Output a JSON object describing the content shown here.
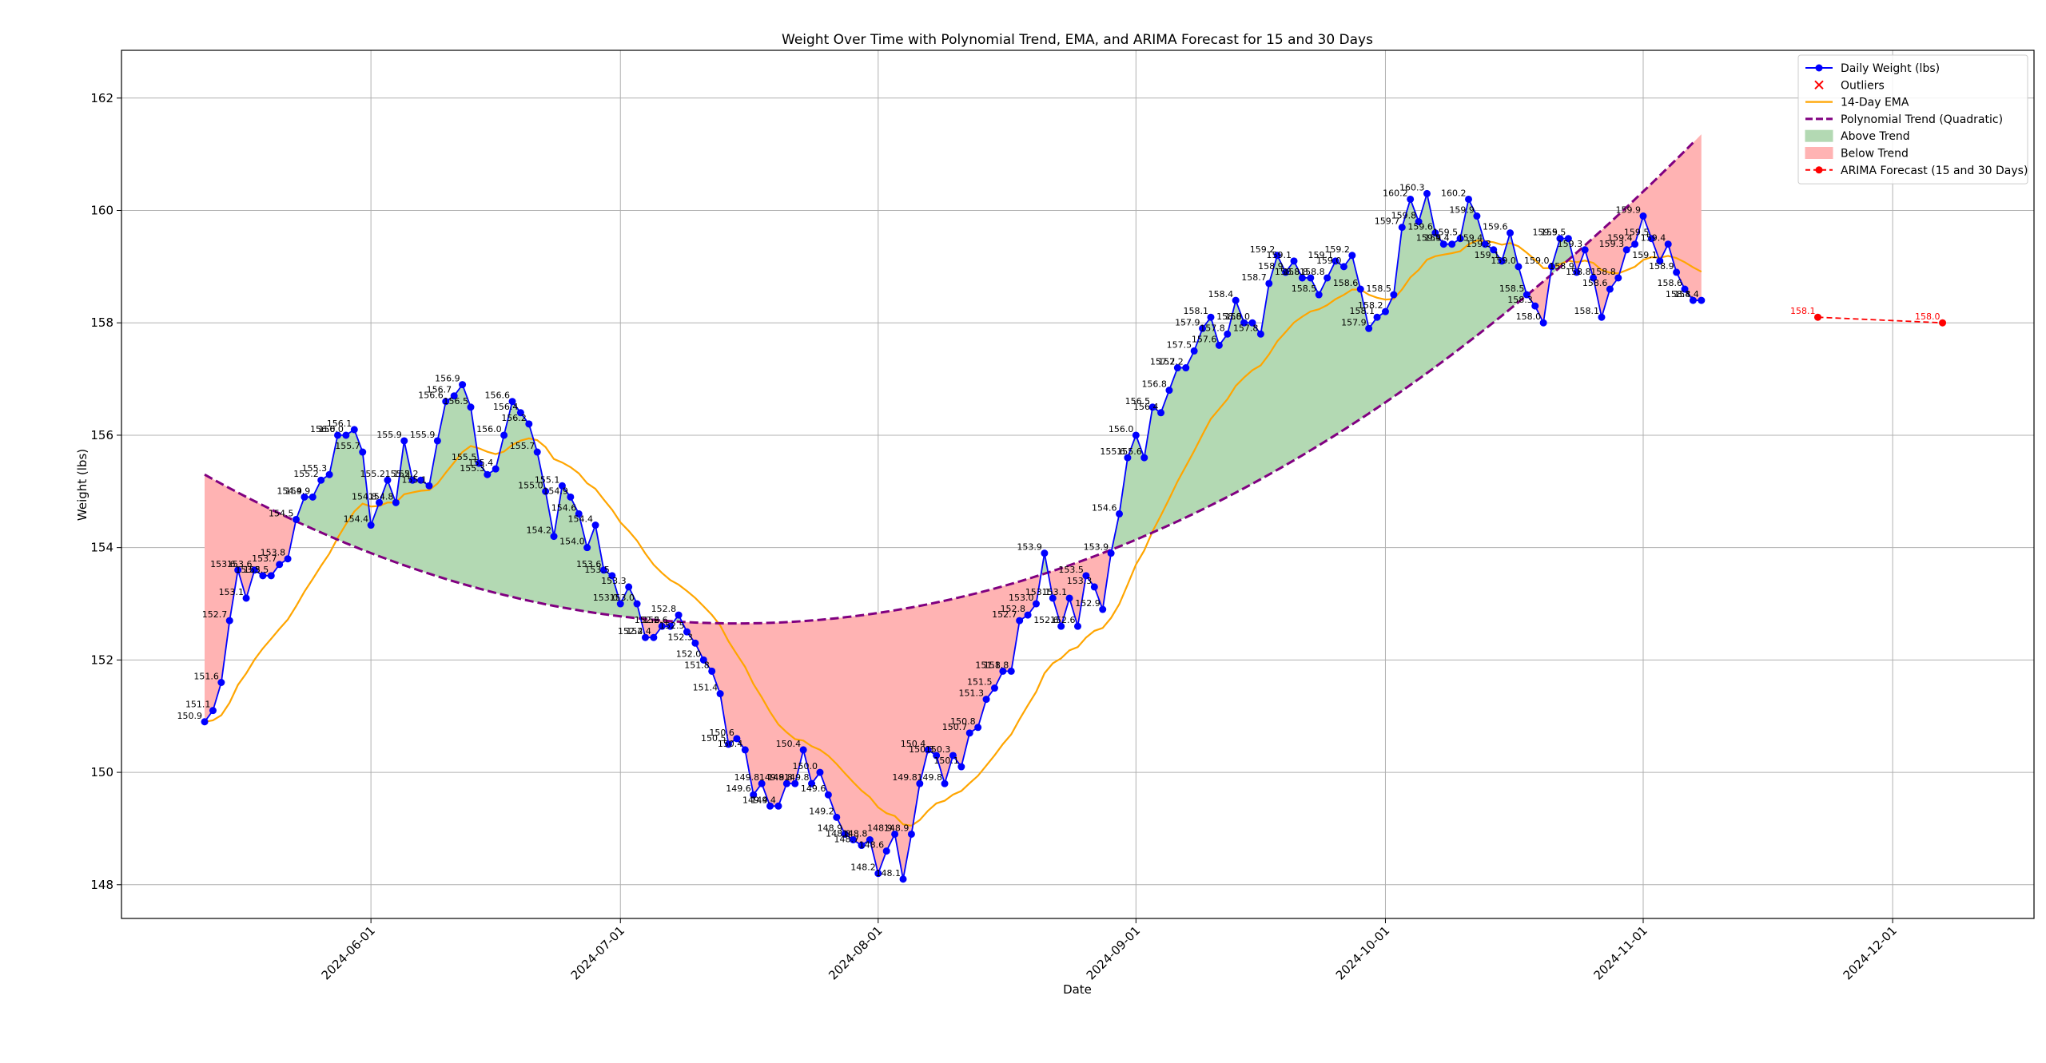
{
  "chart_data": {
    "type": "line",
    "title": "Weight Over Time with Polynomial Trend, EMA, and ARIMA Forecast for 15 and 30 Days",
    "xlabel": "Date",
    "ylabel": "Weight (lbs)",
    "xlim": [
      "2024-05-02",
      "2024-12-18"
    ],
    "ylim": [
      147.4,
      162.85
    ],
    "x_ticks": [
      "2024-06-01",
      "2024-07-01",
      "2024-08-01",
      "2024-09-01",
      "2024-10-01",
      "2024-11-01",
      "2024-12-01"
    ],
    "y_ticks": [
      148,
      150,
      152,
      154,
      156,
      158,
      160,
      162
    ],
    "grid": true,
    "legend_position": "top-right",
    "legend": [
      {
        "label": "Daily Weight (lbs)",
        "kind": "line-marker",
        "color": "#0000ff"
      },
      {
        "label": "Outliers",
        "kind": "x-marker",
        "color": "#ff0000"
      },
      {
        "label": "14-Day EMA",
        "kind": "line",
        "color": "#ffa500"
      },
      {
        "label": "Polynomial Trend (Quadratic)",
        "kind": "dashed",
        "color": "#800080"
      },
      {
        "label": "Above Trend",
        "kind": "patch",
        "color": "#b3d9b3"
      },
      {
        "label": "Below Trend",
        "kind": "patch",
        "color": "#ffb3b3"
      },
      {
        "label": "ARIMA Forecast (15 and 30 Days)",
        "kind": "dashed-marker",
        "color": "#ff0000"
      }
    ],
    "start_date": "2024-05-12",
    "daily_weight": [
      150.9,
      151.1,
      151.6,
      152.7,
      153.6,
      153.1,
      153.6,
      153.5,
      153.5,
      153.7,
      153.8,
      154.5,
      154.9,
      154.9,
      155.2,
      155.3,
      156.0,
      156.0,
      156.1,
      155.7,
      154.4,
      154.8,
      155.2,
      154.8,
      155.9,
      155.2,
      155.2,
      155.1,
      155.9,
      156.6,
      156.7,
      156.9,
      156.5,
      155.5,
      155.3,
      155.4,
      156.0,
      156.6,
      156.4,
      156.2,
      155.7,
      155.0,
      154.2,
      155.1,
      154.9,
      154.6,
      154.0,
      154.4,
      153.6,
      153.5,
      153.0,
      153.3,
      153.0,
      152.4,
      152.4,
      152.6,
      152.6,
      152.8,
      152.5,
      152.3,
      152.0,
      151.8,
      151.4,
      150.5,
      150.6,
      150.4,
      149.6,
      149.8,
      149.4,
      149.4,
      149.8,
      149.8,
      150.4,
      149.8,
      150.0,
      149.6,
      149.2,
      148.9,
      148.8,
      148.7,
      148.8,
      148.2,
      148.6,
      148.9,
      148.1,
      148.9,
      149.8,
      150.4,
      150.3,
      149.8,
      150.3,
      150.1,
      150.7,
      150.8,
      151.3,
      151.5,
      151.8,
      151.8,
      152.7,
      152.8,
      153.0,
      153.9,
      153.1,
      152.6,
      153.1,
      152.6,
      153.5,
      153.3,
      152.9,
      153.9,
      154.6,
      155.6,
      156.0,
      155.6,
      156.5,
      156.4,
      156.8,
      157.2,
      157.2,
      157.5,
      157.9,
      158.1,
      157.6,
      157.8,
      158.4,
      158.0,
      158.0,
      157.8,
      158.7,
      159.2,
      158.9,
      159.1,
      158.8,
      158.8,
      158.5,
      158.8,
      159.1,
      159.0,
      159.2,
      158.6,
      157.9,
      158.1,
      158.2,
      158.5,
      159.7,
      160.2,
      159.8,
      160.3,
      159.6,
      159.4,
      159.4,
      159.5,
      160.2,
      159.9,
      159.4,
      159.3,
      159.1,
      159.6,
      159.0,
      158.5,
      158.3,
      158.0,
      159.0,
      159.5,
      159.5,
      158.9,
      159.3,
      158.8,
      158.1,
      158.6,
      158.8,
      159.3,
      159.4,
      159.9,
      159.5,
      159.1,
      159.4,
      158.9,
      158.6,
      158.4,
      158.4
    ],
    "point_labels": [
      "150.9",
      "151.1",
      "151.6",
      "152.7",
      "153.6",
      "153.1",
      "153.6",
      "153.5",
      "153.5",
      "153.7",
      "153.8",
      "154.5",
      "154.9",
      "154.9",
      "155.2",
      "155.3",
      "156.0",
      "156.0",
      "156.1",
      "155.7",
      "154.4",
      "154.8",
      "155.2",
      "154.8",
      "155.9",
      "155.2",
      "155.2",
      "155.1",
      "155.9",
      "156.6",
      "156.7",
      "156.9",
      "156.5",
      "155.5",
      "155.3",
      "155.4",
      "156.0",
      "156.6",
      "156.4",
      "156.2",
      "155.7",
      "155.0",
      "154.2",
      "155.1",
      "154.9",
      "154.6",
      "154.0",
      "154.4",
      "153.6",
      "153.5",
      "153.0",
      "153.3",
      "153.0",
      "152.4",
      "152.4",
      "152.6",
      "152.6",
      "152.8",
      "152.5",
      "152.3",
      "152.0",
      "151.8",
      "151.4",
      "150.5",
      "150.6",
      "150.4",
      "149.6",
      "149.8",
      "149.4",
      "149.4",
      "149.8",
      "149.8",
      "150.4",
      "149.8",
      "150.0",
      "149.6",
      "149.2",
      "148.9",
      "148.8",
      "148.7",
      "148.8",
      "148.2",
      "148.6",
      "148.9",
      "148.1",
      "148.9",
      "149.8",
      "150.4",
      "150.3",
      "149.8",
      "150.3",
      "150.1",
      "150.7",
      "150.8",
      "151.3",
      "151.5",
      "151.8",
      "151.8",
      "152.7",
      "152.8",
      "153.0",
      "153.9",
      "153.1",
      "152.6",
      "153.1",
      "152.6",
      "153.5",
      "153.3",
      "152.9",
      "153.9",
      "154.6",
      "155.6",
      "156.0",
      "155.6",
      "156.5",
      "156.4",
      "156.8",
      "157.2",
      "157.2",
      "157.5",
      "157.9",
      "158.1",
      "157.6",
      "157.8",
      "158.4",
      "158.0",
      "158.0",
      "157.8",
      "158.7",
      "159.2",
      "158.9",
      "159.1",
      "158.8",
      "158.8",
      "158.5",
      "158.8",
      "159.1",
      "159.0",
      "159.2",
      "158.6",
      "157.9",
      "158.1",
      "158.2",
      "158.5",
      "159.7",
      "160.2",
      "159.8",
      "160.3",
      "159.6",
      "159.4",
      "159.4",
      "159.5",
      "160.2",
      "159.9",
      "159.4",
      "159.3",
      "159.1",
      "159.6",
      "159.0",
      "158.5",
      "158.3",
      "158.0",
      "159.0",
      "159.5",
      "159.5",
      "158.9",
      "159.3",
      "158.8",
      "158.1",
      "158.6",
      "158.8",
      "159.3",
      "159.4",
      "159.9",
      "159.5",
      "159.1",
      "159.4",
      "158.9",
      "158.6",
      "158.4",
      "158.4"
    ],
    "trend_quadratic": {
      "x_start": "2024-05-12",
      "x_end": "2024-11-07",
      "vertex_date": "2024-07-15",
      "vertex_value": 152.65,
      "value_at_start": 155.3
    },
    "ema_span": 14,
    "arima_forecast": [
      {
        "x": "2024-11-22",
        "y": 158.1,
        "label": "158.1"
      },
      {
        "x": "2024-12-07",
        "y": 158.0,
        "label": "158.0"
      }
    ],
    "outliers": []
  }
}
